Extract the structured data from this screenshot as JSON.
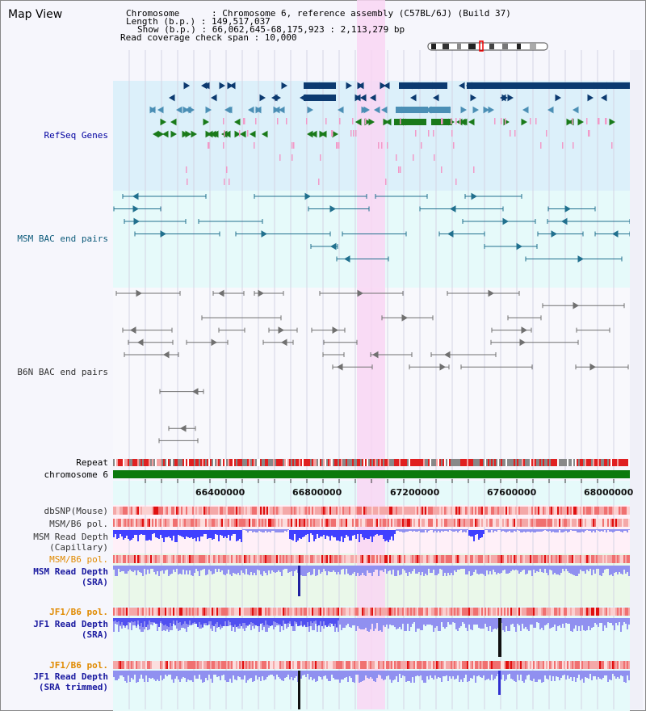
{
  "title": "Map View",
  "header": {
    "lines": [
      "Chromosome      : Chromosome 6, reference assembly (C57BL/6J) (Build 37)",
      "Length (b.p.) : 149,517,037",
      "Show (b.p.) : 66,062,645-68,175,923 : 2,113,279 bp",
      "Read coverage check span : 10,000"
    ]
  },
  "colors": {
    "genes_bg": "#dcf0fa",
    "msm_bac_bg": "#e6fafa",
    "highlight": "#f9d6f3",
    "gene_dark": "#0c3a70",
    "gene_mid": "#4b8fb5",
    "gene_green": "#1a7a1a",
    "pink": "#f29ac8",
    "bac_blue": "#21708e",
    "bac_gray": "#707070",
    "depth_blue": "#4040ff",
    "depth_light": "#9090f0",
    "chromosome_green": "#0c7a0c"
  },
  "tracks": {
    "refseq": "RefSeq Genes",
    "msm_bac": "MSM BAC end pairs",
    "b6n_bac": "B6N BAC end pairs",
    "repeat": "Repeat",
    "chromosome": "chromosome 6",
    "dbsnp": "dbSNP(Mouse)",
    "msm_b6_pol_1": "MSM/B6 pol.",
    "msm_depth_cap_1": "MSM Read Depth",
    "msm_depth_cap_2": "(Capillary)",
    "msm_b6_pol_2": "MSM/B6 pol.",
    "msm_depth_sra_1": "MSM Read Depth",
    "msm_depth_sra_2": "(SRA)",
    "jf1_b6_pol_1": "JF1/B6 pol.",
    "jf1_depth_sra_1": "JF1 Read Depth",
    "jf1_depth_sra_2": "(SRA)",
    "jf1_b6_pol_2": "JF1/B6 pol.",
    "jf1_depth_trim_1": "JF1 Read Depth",
    "jf1_depth_trim_2": "(SRA trimmed)"
  },
  "axis_ticks": [
    "66400000",
    "66800000",
    "67200000",
    "67600000",
    "68000000"
  ]
}
